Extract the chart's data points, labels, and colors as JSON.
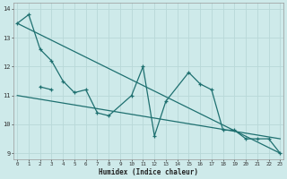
{
  "title": "",
  "xlabel": "Humidex (Indice chaleur)",
  "ylabel": "",
  "bg_color": "#ceeaea",
  "grid_color": "#b8d8d8",
  "line_color": "#1e7070",
  "x_values": [
    0,
    1,
    2,
    3,
    4,
    5,
    6,
    7,
    8,
    9,
    10,
    11,
    12,
    13,
    14,
    15,
    16,
    17,
    18,
    19,
    20,
    21,
    22,
    23
  ],
  "series1_x": [
    0,
    1,
    2,
    3,
    4,
    5,
    6,
    7,
    8,
    10,
    11,
    12,
    13,
    15,
    16,
    17,
    18,
    19,
    20,
    21,
    22,
    23
  ],
  "series1_y": [
    13.5,
    13.8,
    12.6,
    12.2,
    11.5,
    11.1,
    11.2,
    10.4,
    10.3,
    11.0,
    12.0,
    9.6,
    10.8,
    11.8,
    11.4,
    11.2,
    9.8,
    9.8,
    9.5,
    9.5,
    9.5,
    9.0
  ],
  "series2_x": [
    2,
    3
  ],
  "series2_y": [
    11.3,
    11.2
  ],
  "trend1_x": [
    0,
    23
  ],
  "trend1_y": [
    13.5,
    9.0
  ],
  "trend2_x": [
    0,
    23
  ],
  "trend2_y": [
    11.0,
    9.5
  ],
  "ylim": [
    8.8,
    14.2
  ],
  "xlim": [
    -0.3,
    23.3
  ]
}
